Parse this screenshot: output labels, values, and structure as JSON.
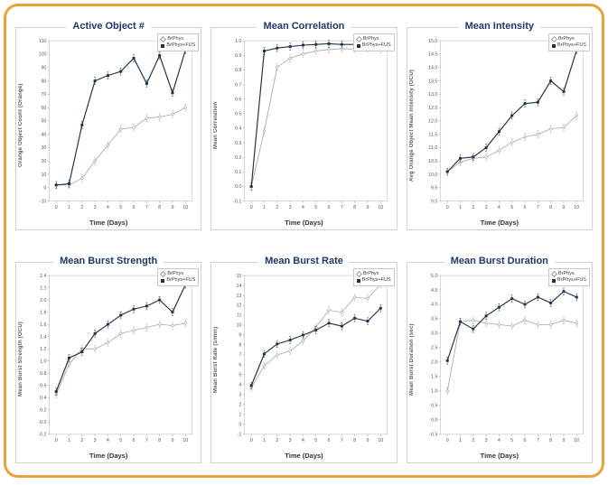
{
  "page": {
    "border_color": "#E7A33B",
    "background": "#ffffff",
    "title_color": "#1F3864"
  },
  "chart_data": [
    {
      "type": "line",
      "title": "Active Object #",
      "xlabel": "Time (Days)",
      "ylabel": "Orange Object Count (Orange)",
      "x": [
        0,
        1,
        2,
        3,
        4,
        5,
        6,
        7,
        8,
        9,
        10
      ],
      "ylim": [
        -10,
        110
      ],
      "ytick_step": 10,
      "grid": false,
      "legend_position": "top-right",
      "error_bars": true,
      "series": [
        {
          "name": "BrPhys",
          "color": "#a8a8a8",
          "marker": "diamond",
          "values": [
            2,
            2,
            7,
            20,
            32,
            44,
            45,
            52,
            53,
            55,
            60
          ]
        },
        {
          "name": "BrPhys+FUS",
          "color": "#1f3347",
          "marker": "square",
          "values": [
            2,
            3,
            47,
            80,
            84,
            87,
            97,
            78,
            99,
            71,
            103
          ]
        }
      ]
    },
    {
      "type": "line",
      "title": "Mean Correlation",
      "xlabel": "Time (Days)",
      "ylabel": "Mean Correlation",
      "x": [
        0,
        1,
        2,
        3,
        4,
        5,
        6,
        7,
        8,
        9,
        10
      ],
      "ylim": [
        -0.1,
        1.0
      ],
      "ytick_step": 0.1,
      "grid": false,
      "legend_position": "top-right",
      "error_bars": true,
      "series": [
        {
          "name": "BrPhys",
          "color": "#a8a8a8",
          "marker": "diamond",
          "values": [
            0,
            0.38,
            0.82,
            0.88,
            0.91,
            0.93,
            0.94,
            0.945,
            0.945,
            0.95,
            0.94
          ]
        },
        {
          "name": "BrPhys+FUS",
          "color": "#1f3347",
          "marker": "square",
          "values": [
            0,
            0.93,
            0.95,
            0.96,
            0.97,
            0.975,
            0.98,
            0.975,
            0.975,
            0.975,
            0.97
          ]
        }
      ]
    },
    {
      "type": "line",
      "title": "Mean Intensity",
      "xlabel": "Time (Days)",
      "ylabel": "Avg Orange Object Mean Intensity (OCU)",
      "x": [
        0,
        1,
        2,
        3,
        4,
        5,
        6,
        7,
        8,
        9,
        10
      ],
      "ylim": [
        9,
        15
      ],
      "ytick_step": 0.5,
      "grid": false,
      "legend_position": "top-right",
      "error_bars": true,
      "series": [
        {
          "name": "BrPhys",
          "color": "#a8a8a8",
          "marker": "diamond",
          "values": [
            10.1,
            10.45,
            10.6,
            10.65,
            10.9,
            11.2,
            11.4,
            11.5,
            11.7,
            11.75,
            12.2
          ]
        },
        {
          "name": "BrPhys+FUS",
          "color": "#1f3347",
          "marker": "square",
          "values": [
            10.1,
            10.6,
            10.65,
            11.0,
            11.6,
            12.2,
            12.65,
            12.7,
            13.5,
            13.1,
            14.65
          ]
        }
      ]
    },
    {
      "type": "line",
      "title": "Mean Burst Strength",
      "xlabel": "Time (Days)",
      "ylabel": "Mean Burst Strength (OCU)",
      "x": [
        0,
        1,
        2,
        3,
        4,
        5,
        6,
        7,
        8,
        9,
        10
      ],
      "ylim": [
        -0.2,
        2.4
      ],
      "ytick_step": 0.2,
      "grid": false,
      "legend_position": "top-right",
      "error_bars": true,
      "series": [
        {
          "name": "BrPhys",
          "color": "#a8a8a8",
          "marker": "diamond",
          "values": [
            0.45,
            0.95,
            1.2,
            1.2,
            1.3,
            1.45,
            1.5,
            1.55,
            1.6,
            1.58,
            1.62
          ]
        },
        {
          "name": "BrPhys+FUS",
          "color": "#1f3347",
          "marker": "square",
          "values": [
            0.5,
            1.05,
            1.15,
            1.45,
            1.6,
            1.75,
            1.85,
            1.9,
            2.0,
            1.8,
            2.25
          ]
        }
      ]
    },
    {
      "type": "line",
      "title": "Mean Burst Rate",
      "xlabel": "Time (Days)",
      "ylabel": "Mean Burst Rate (1/min)",
      "x": [
        0,
        1,
        2,
        3,
        4,
        5,
        6,
        7,
        8,
        9,
        10
      ],
      "ylim": [
        -1,
        15
      ],
      "ytick_step": 1,
      "grid": false,
      "legend_position": "top-right",
      "error_bars": true,
      "series": [
        {
          "name": "BrPhys",
          "color": "#a8a8a8",
          "marker": "diamond",
          "values": [
            3.7,
            5.9,
            7.0,
            7.4,
            8.4,
            9.8,
            11.5,
            11.3,
            12.8,
            12.7,
            14.1
          ]
        },
        {
          "name": "BrPhys+FUS",
          "color": "#1f3347",
          "marker": "square",
          "values": [
            3.9,
            7.1,
            8.1,
            8.5,
            9.0,
            9.5,
            10.2,
            9.9,
            10.7,
            10.4,
            11.7
          ]
        }
      ]
    },
    {
      "type": "line",
      "title": "Mean Burst Duration",
      "xlabel": "Time (Days)",
      "ylabel": "Mean Burst Duration (sec)",
      "x": [
        0,
        1,
        2,
        3,
        4,
        5,
        6,
        7,
        8,
        9,
        10
      ],
      "ylim": [
        -0.5,
        5
      ],
      "ytick_step": 0.5,
      "grid": false,
      "legend_position": "top-right",
      "error_bars": true,
      "series": [
        {
          "name": "BrPhys",
          "color": "#a8a8a8",
          "marker": "diamond",
          "values": [
            1.0,
            3.4,
            3.45,
            3.35,
            3.3,
            3.25,
            3.45,
            3.3,
            3.3,
            3.45,
            3.35
          ]
        },
        {
          "name": "BrPhys+FUS",
          "color": "#1f3347",
          "marker": "square",
          "values": [
            2.05,
            3.4,
            3.15,
            3.6,
            3.9,
            4.2,
            4.0,
            4.25,
            4.05,
            4.45,
            4.25
          ]
        }
      ]
    }
  ]
}
